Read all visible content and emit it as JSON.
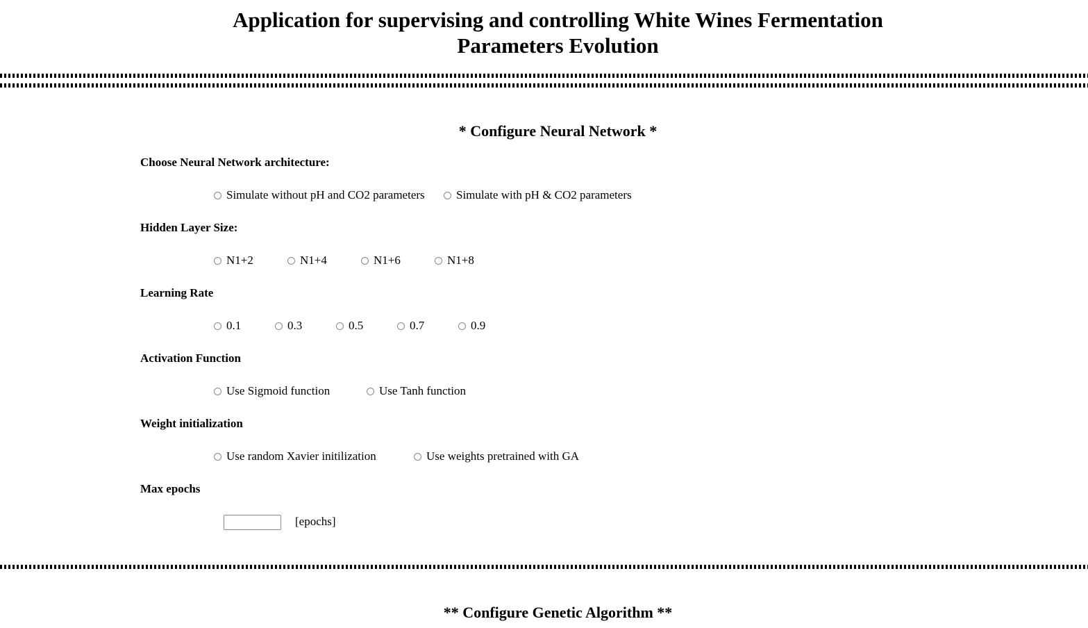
{
  "title_line1": "Application for supervising and controlling White Wines Fermentation",
  "title_line2": "Parameters Evolution",
  "nn_section": "* Configure Neural Network *",
  "architecture": {
    "label": "Choose Neural Network architecture:",
    "options": [
      "Simulate without pH and CO2 parameters",
      "Simulate with pH & CO2 parameters"
    ]
  },
  "hidden": {
    "label": "Hidden Layer Size:",
    "options": [
      "N1+2",
      "N1+4",
      "N1+6",
      "N1+8"
    ]
  },
  "lr": {
    "label": "Learning Rate",
    "options": [
      "0.1",
      "0.3",
      "0.5",
      "0.7",
      "0.9"
    ]
  },
  "activation": {
    "label": "Activation Function",
    "options": [
      "Use Sigmoid function",
      "Use Tanh function"
    ]
  },
  "weights": {
    "label": "Weight initialization",
    "options": [
      "Use random Xavier initilization",
      "Use weights pretrained with GA"
    ]
  },
  "epochs": {
    "label": "Max epochs",
    "value": "",
    "unit": "[epochs]"
  },
  "ga_section": "** Configure Genetic Algorithm **"
}
